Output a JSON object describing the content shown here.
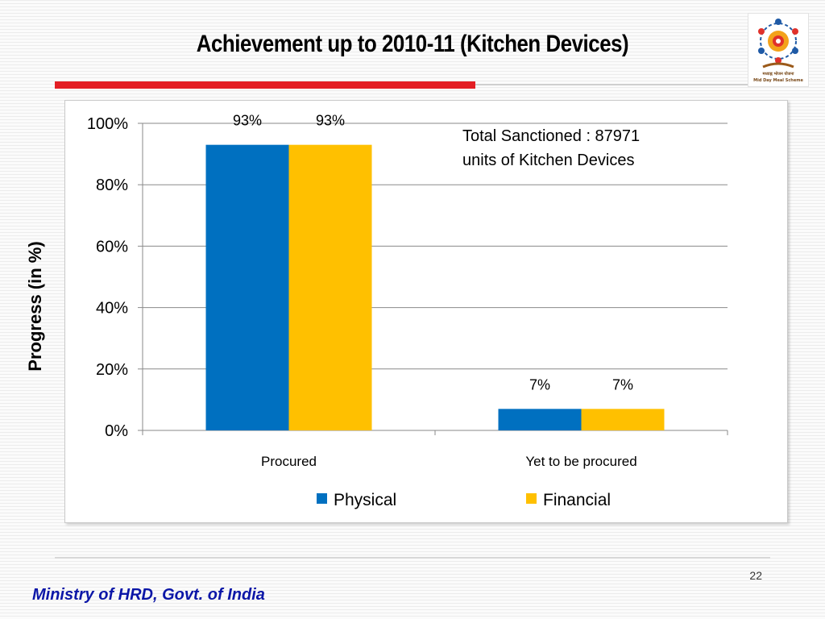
{
  "slide": {
    "title": "Achievement up to 2010-11 (Kitchen Devices)",
    "page_number": "22",
    "footer": "Ministry of HRD, Govt. of India",
    "logo_caption": "मध्याह्न भोजन योजना",
    "logo_subcaption": "Mid Day Meal Scheme"
  },
  "colors": {
    "physical": "#0070c0",
    "financial": "#ffc000",
    "accent_red": "#e31e24",
    "footer_blue": "#0b16a7"
  },
  "chart_data": {
    "type": "bar",
    "title": "",
    "xlabel": "",
    "ylabel": "Progress (in %)",
    "categories": [
      "Procured",
      "Yet to be procured"
    ],
    "series": [
      {
        "name": "Physical",
        "values": [
          93,
          7
        ],
        "labels": [
          "93%",
          "7%"
        ],
        "color": "#0070c0"
      },
      {
        "name": "Financial",
        "values": [
          93,
          7
        ],
        "labels": [
          "93%",
          "7%"
        ],
        "color": "#ffc000"
      }
    ],
    "ylim": [
      0,
      100
    ],
    "yticks": [
      0,
      20,
      40,
      60,
      80,
      100
    ],
    "ytick_labels": [
      "0%",
      "20%",
      "40%",
      "60%",
      "80%",
      "100%"
    ],
    "grid": true,
    "legend_position": "bottom",
    "annotation": {
      "line1": "Total Sanctioned : 87971",
      "line2": "units of Kitchen Devices"
    }
  }
}
